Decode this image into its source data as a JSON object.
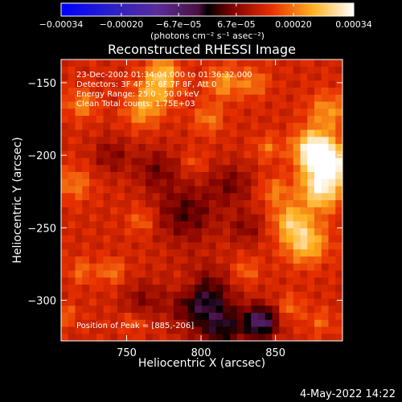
{
  "chart_data": {
    "type": "heatmap",
    "title": "Reconstructed RHESSI Image",
    "xlabel": "Heliocentric X (arcsec)",
    "ylabel": "Heliocentric Y (arcsec)",
    "xlim": [
      706,
      895
    ],
    "ylim": [
      -328,
      -134
    ],
    "x_ticks": [
      750,
      800,
      850
    ],
    "y_ticks": [
      -150,
      -200,
      -250,
      -300
    ],
    "x_tick_labels": [
      "750",
      "800",
      "850"
    ],
    "y_tick_labels": [
      "-150",
      "-200",
      "-250",
      "-300"
    ],
    "grid_cells": [
      40,
      40
    ],
    "colorbar": {
      "range": [
        -0.00034,
        0.00034
      ],
      "ticks": [
        -0.00034,
        -0.0002,
        -6.7e-05,
        6.7e-05,
        0.0002,
        0.00034
      ],
      "tick_labels": [
        "-0.00034",
        "-0.00020",
        "-6.7e-05",
        "6.7e-05",
        "0.00020",
        "0.00034"
      ],
      "unit_label": "(photons cm⁻² s⁻¹ asec⁻²)"
    },
    "annotations": [
      "23-Dec-2002 01:34:04.000 to 01:36:32.000",
      "Detectors: 3F 4F 5F 6F 7F 8F, Att 0",
      "Energy Range: 25.0 - 50.0 keV",
      "Clean     Total counts: 1.75E+03"
    ],
    "peak_label": "Position of Peak = [885,-206]",
    "peak": {
      "x": 885,
      "y": -206
    }
  },
  "footer": {
    "date": "4-May-2022 14:22"
  },
  "colors": {
    "background": "#000000",
    "foreground": "#ffffff"
  }
}
